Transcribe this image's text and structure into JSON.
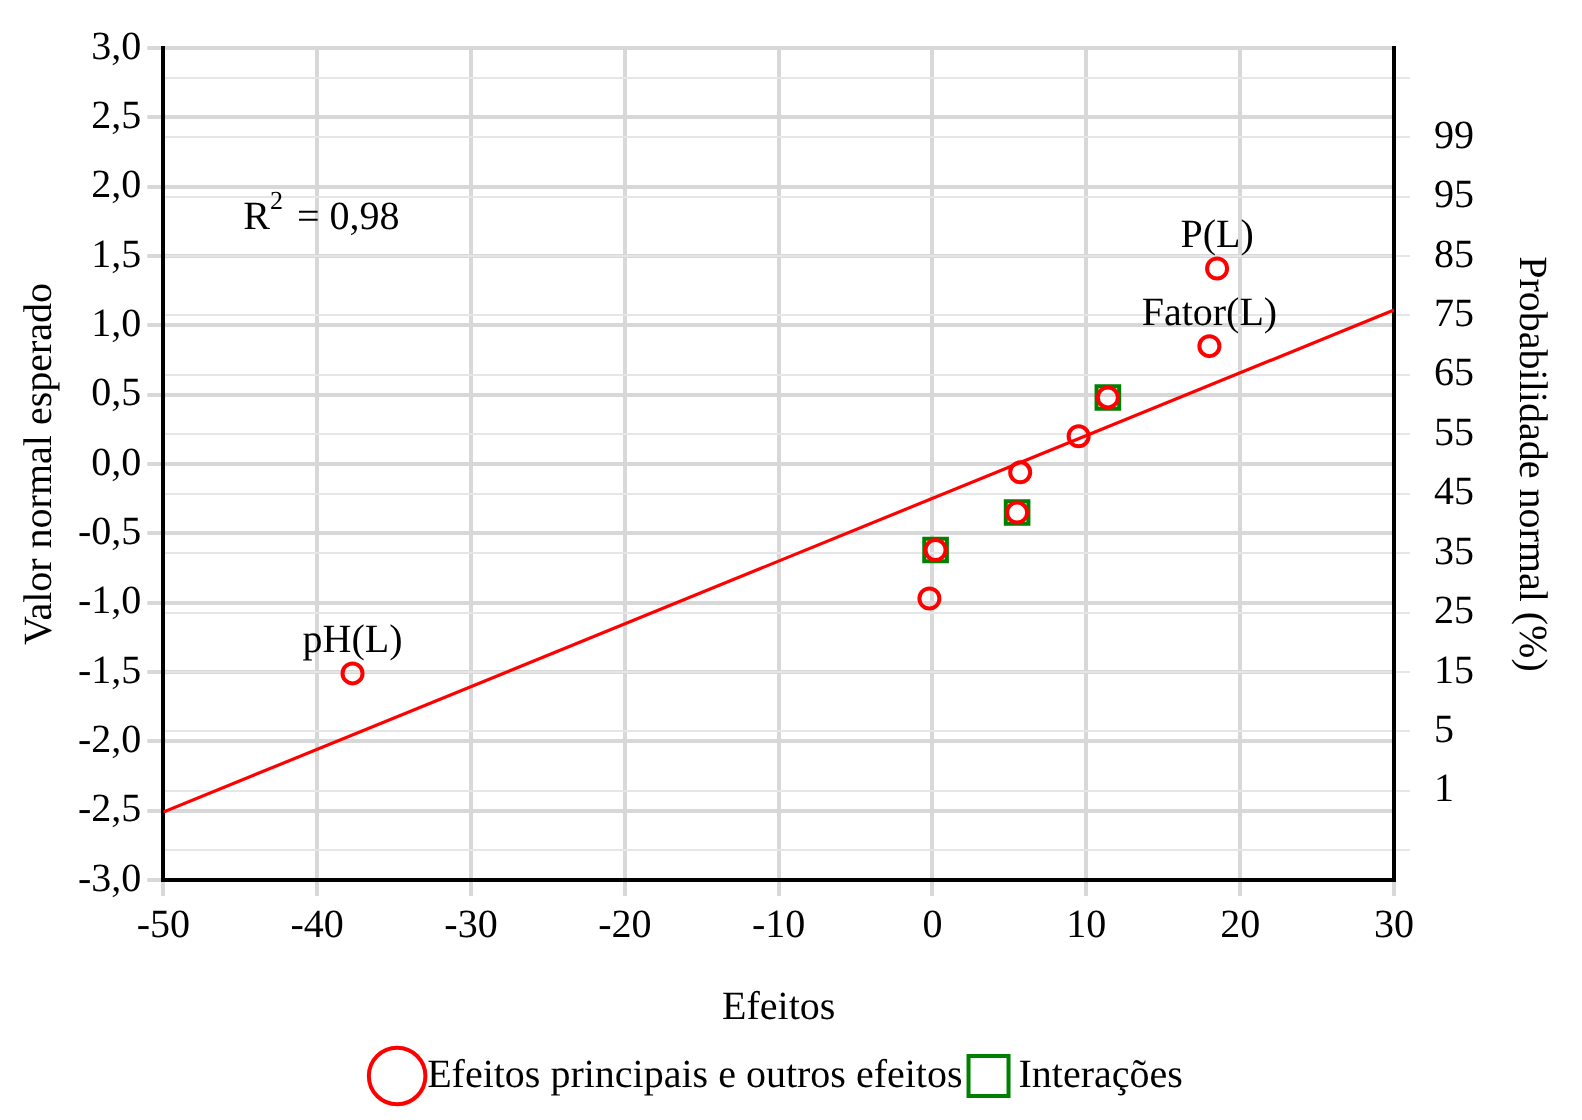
{
  "chart_data": {
    "type": "scatter",
    "xlabel": "Efeitos",
    "ylabel": "Valor normal esperado",
    "y2label": "Probabilidade normal (%)",
    "xlim": [
      -50,
      30
    ],
    "xticks": [
      -50,
      -40,
      -30,
      -20,
      -10,
      0,
      10,
      20,
      30
    ],
    "ylim": [
      -3,
      3
    ],
    "yticks": [
      {
        "value": -3,
        "label": "-3,0"
      },
      {
        "value": -2.5,
        "label": "-2,5"
      },
      {
        "value": -2,
        "label": "-2,0"
      },
      {
        "value": -1.5,
        "label": "-1,5"
      },
      {
        "value": -1,
        "label": "-1,0"
      },
      {
        "value": -0.5,
        "label": "-0,5"
      },
      {
        "value": 0,
        "label": "0,0"
      },
      {
        "value": 0.5,
        "label": "0,5"
      },
      {
        "value": 1,
        "label": "1,0"
      },
      {
        "value": 1.5,
        "label": "1,5"
      },
      {
        "value": 2,
        "label": "2,0"
      },
      {
        "value": 2.5,
        "label": "2,5"
      },
      {
        "value": 3,
        "label": "3,0"
      }
    ],
    "y2_categories": [
      null,
      "99",
      "95",
      "85",
      "75",
      "65",
      "55",
      "45",
      "35",
      "25",
      "15",
      "5",
      "1",
      null
    ],
    "grid": true,
    "legend": "bottom",
    "series": [
      {
        "name": "Efeitos principais e outros efeitos",
        "color": "#ff0000",
        "marker": "circle",
        "x": [
          -37.7,
          -0.2,
          0.2,
          5.5,
          5.7,
          9.5,
          11.4,
          18.0,
          18.5
        ],
        "values": [
          -1.51,
          -0.97,
          -0.62,
          -0.35,
          -0.06,
          0.2,
          0.48,
          0.85,
          1.41
        ]
      },
      {
        "name": "Interações",
        "color": "#008000",
        "marker": "square",
        "x": [
          0.2,
          5.5,
          11.4
        ],
        "values": [
          -0.62,
          -0.35,
          0.48
        ]
      },
      {
        "type": "line",
        "color": "#ff0000",
        "marker": "none",
        "x": [
          -50,
          30
        ],
        "values": [
          -2.51,
          1.11
        ]
      }
    ],
    "annotations": [
      "R$^{2}$ = 0,98",
      {
        "text": "pH(L)",
        "x": -37.7,
        "y": -1.51
      },
      {
        "text": "P(L)",
        "x": 18.5,
        "y": 1.41
      },
      {
        "text": "Fator(L)",
        "x": 18.0,
        "y": 0.85
      }
    ]
  }
}
